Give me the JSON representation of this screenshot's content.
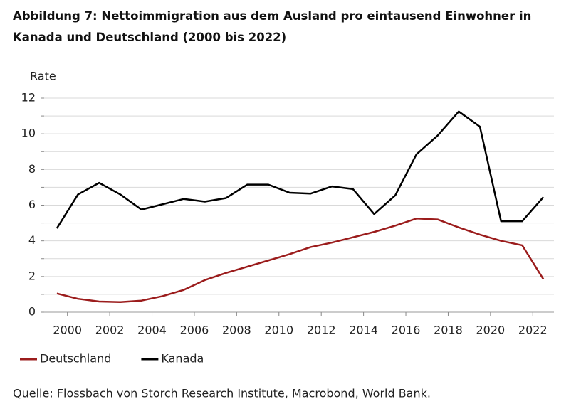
{
  "chart_data": {
    "type": "line",
    "title": "Abbildung 7: Nettoimmigration aus dem Ausland pro eintausend Einwohner in Kanada und Deutschland (2000 bis 2022)",
    "y_label": "Rate",
    "source": "Quelle: Flossbach von Storch Research Institute, Macrobond, World Bank.",
    "x": [
      1999.5,
      2000.5,
      2001.5,
      2002.5,
      2003.5,
      2004.5,
      2005.5,
      2006.5,
      2007.5,
      2008.5,
      2009.5,
      2010.5,
      2011.5,
      2012.5,
      2013.5,
      2014.5,
      2015.5,
      2016.5,
      2017.5,
      2018.5,
      2019.5,
      2020.5,
      2021.5,
      2022.5
    ],
    "series": [
      {
        "name": "Deutschland",
        "color": "#9b1c1c",
        "values": [
          1.05,
          0.75,
          0.6,
          0.57,
          0.65,
          0.9,
          1.25,
          1.8,
          2.2,
          2.55,
          2.9,
          3.25,
          3.65,
          3.9,
          4.2,
          4.5,
          4.85,
          5.25,
          5.2,
          4.75,
          4.35,
          4.0,
          3.75,
          1.85
        ]
      },
      {
        "name": "Kanada",
        "color": "#000000",
        "values": [
          4.7,
          6.6,
          7.25,
          6.6,
          5.75,
          6.05,
          6.35,
          6.2,
          6.4,
          7.15,
          7.15,
          6.7,
          6.65,
          7.05,
          6.9,
          5.5,
          6.55,
          8.85,
          9.9,
          11.25,
          10.4,
          5.1,
          5.1,
          6.45
        ]
      }
    ],
    "xlim": [
      1998.9,
      2023
    ],
    "xticks": [
      2000,
      2002,
      2004,
      2006,
      2008,
      2010,
      2012,
      2014,
      2016,
      2018,
      2020,
      2022
    ],
    "ylim": [
      0,
      12
    ],
    "yticks": [
      0,
      2,
      4,
      6,
      8,
      10,
      12
    ],
    "yminorticks": [
      1,
      3,
      5,
      7,
      9,
      11
    ],
    "grid": true,
    "legend": "bottom-left"
  }
}
